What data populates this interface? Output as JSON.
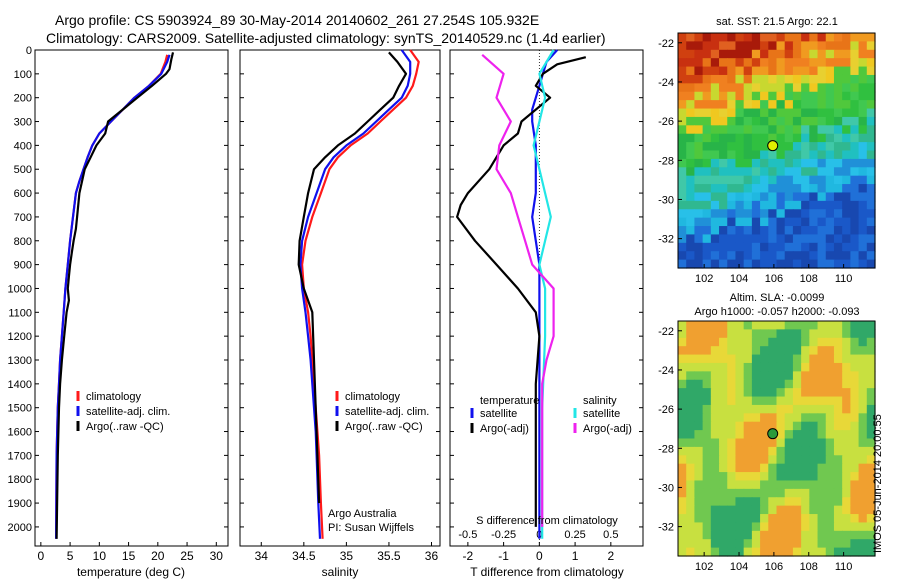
{
  "header": {
    "line1": "Argo profile: CS 5903924_89 30-May-2014 20140602_261 27.254S 105.932E",
    "line2": "Climatology: CARS2009. Satellite-adjusted climatology: synTS_20140529.nc (1.4d earlier)"
  },
  "side_stamp": "IMOS 05-Jun-2014 20:00:55",
  "colors": {
    "black": "#000000",
    "red": "#ff1a1a",
    "blue": "#1010ee",
    "cyan": "#22e6e6",
    "magenta": "#ee22ee"
  },
  "chart_data": [
    {
      "id": "temperature",
      "type": "line",
      "xlabel": "temperature (deg C)",
      "ylabel": "",
      "xlim": [
        -1,
        32
      ],
      "ylim": [
        2080,
        0
      ],
      "xticks": [
        0,
        5,
        10,
        15,
        20,
        25,
        30
      ],
      "yticks": [
        0,
        100,
        200,
        300,
        400,
        500,
        600,
        700,
        800,
        900,
        1000,
        1100,
        1200,
        1300,
        1400,
        1500,
        1600,
        1700,
        1800,
        1900,
        2000
      ],
      "legend": {
        "position": "lower-center",
        "entries": [
          "climatology",
          "satellite-adj. clim.",
          "Argo(..raw -QC)"
        ]
      },
      "series": [
        {
          "name": "climatology",
          "color": "red",
          "x": [
            21.6,
            21.3,
            20.5,
            18.5,
            16,
            14,
            12,
            10,
            8.8,
            8,
            7.3,
            6.6,
            6,
            5.5,
            5,
            4.6,
            4.2,
            3.9,
            3.6,
            3.3,
            3.1,
            2.9,
            2.7,
            2.6
          ],
          "y": [
            20,
            50,
            100,
            150,
            200,
            250,
            300,
            350,
            400,
            450,
            500,
            550,
            600,
            700,
            800,
            900,
            1000,
            1100,
            1200,
            1300,
            1400,
            1500,
            1700,
            2050
          ]
        },
        {
          "name": "satellite-adj. clim.",
          "color": "blue",
          "x": [
            22,
            21.6,
            20.6,
            18.5,
            16,
            14,
            12,
            10,
            8.8,
            8,
            7.3,
            6.6,
            6,
            5.5,
            5,
            4.6,
            4.2,
            3.9,
            3.6,
            3.3,
            3.1,
            2.9,
            2.7,
            2.6
          ],
          "y": [
            20,
            50,
            100,
            150,
            200,
            250,
            300,
            350,
            400,
            450,
            500,
            550,
            600,
            700,
            800,
            900,
            1000,
            1100,
            1200,
            1300,
            1400,
            1500,
            1700,
            2050
          ]
        },
        {
          "name": "Argo(..raw -QC)",
          "color": "black",
          "x": [
            22.6,
            22.3,
            22,
            21.4,
            19,
            16.5,
            14,
            11.5,
            11,
            9.5,
            8.5,
            7.5,
            6.6,
            6.2,
            6,
            5.6,
            5.3,
            5,
            4.8,
            4.6,
            4.8,
            4.4,
            4,
            3.6,
            3.3,
            3.1,
            2.9,
            2.7
          ],
          "y": [
            10,
            40,
            80,
            100,
            150,
            200,
            250,
            300,
            350,
            400,
            450,
            500,
            600,
            700,
            750,
            800,
            850,
            900,
            950,
            1000,
            1050,
            1100,
            1200,
            1300,
            1400,
            1500,
            1700,
            2050
          ]
        }
      ]
    },
    {
      "id": "salinity",
      "type": "line",
      "xlabel": "salinity",
      "ylabel": "",
      "xlim": [
        33.75,
        36.1
      ],
      "ylim": [
        2080,
        0
      ],
      "xticks": [
        34,
        34.5,
        35,
        35.5,
        36
      ],
      "legend": {
        "position": "lower-center",
        "entries": [
          "climatology",
          "satellite-adj. clim.",
          "Argo(..raw -QC)"
        ]
      },
      "annotation": [
        "Argo Australia",
        "PI: Susan Wijffels"
      ],
      "series": [
        {
          "name": "climatology",
          "color": "red",
          "x": [
            35.75,
            35.85,
            35.82,
            35.78,
            35.7,
            35.55,
            35.4,
            35.25,
            35.05,
            34.9,
            34.8,
            34.7,
            34.6,
            34.52,
            34.48,
            34.5,
            34.55,
            34.58,
            34.6,
            34.62,
            34.64,
            34.66,
            34.68,
            34.7,
            34.72
          ],
          "y": [
            0,
            50,
            100,
            150,
            200,
            250,
            300,
            350,
            400,
            450,
            500,
            600,
            700,
            800,
            900,
            1000,
            1100,
            1200,
            1300,
            1400,
            1500,
            1600,
            1700,
            1900,
            2050
          ]
        },
        {
          "name": "satellite-adj. clim.",
          "color": "blue",
          "x": [
            35.65,
            35.75,
            35.75,
            35.72,
            35.65,
            35.5,
            35.35,
            35.2,
            35.0,
            34.85,
            34.75,
            34.65,
            34.55,
            34.48,
            34.46,
            34.48,
            34.52,
            34.55,
            34.58,
            34.6,
            34.62,
            34.64,
            34.65,
            34.67,
            34.69
          ],
          "y": [
            0,
            50,
            100,
            150,
            200,
            250,
            300,
            350,
            400,
            450,
            500,
            600,
            700,
            800,
            900,
            1000,
            1100,
            1200,
            1300,
            1400,
            1500,
            1600,
            1700,
            1900,
            2050
          ]
        },
        {
          "name": "Argo(..raw -QC)",
          "color": "black",
          "x": [
            35.5,
            35.6,
            35.7,
            35.62,
            35.55,
            35.4,
            35.25,
            35.1,
            34.9,
            34.75,
            34.62,
            34.55,
            34.5,
            34.45,
            34.44,
            34.5,
            34.6,
            34.62,
            34.64,
            34.66,
            34.68
          ],
          "y": [
            10,
            50,
            100,
            150,
            200,
            250,
            300,
            350,
            400,
            450,
            500,
            600,
            700,
            800,
            900,
            1000,
            1100,
            1300,
            1500,
            1700,
            1900
          ]
        }
      ]
    },
    {
      "id": "difference",
      "type": "line",
      "xlabel": "T difference from climatology",
      "top_xlabel": "S difference from climatology",
      "xlim": [
        -2.5,
        2.9
      ],
      "ylim": [
        2080,
        0
      ],
      "xticks": [
        -2,
        -1,
        0,
        1,
        2
      ],
      "xtick_labels": [
        "-2",
        "-1",
        "0",
        "1",
        "2"
      ],
      "s_ticks": [
        -0.5,
        -0.25,
        0,
        0.25,
        0.5
      ],
      "s_tick_labels": [
        "-0.5",
        "-0.25",
        "0",
        "0.25",
        "0.5"
      ],
      "legend": {
        "temperature_title": "temperature",
        "salinity_title": "salinity",
        "entries": [
          "satellite",
          "Argo(-adj)",
          "satellite",
          "Argo(-adj)"
        ]
      },
      "series": [
        {
          "name": "satellite",
          "group": "temperature",
          "color": "blue",
          "x": [
            0.5,
            0.2,
            0.1,
            0,
            -0.1,
            -0.2,
            -0.2,
            -0.1,
            -0.1,
            -0.1,
            -0.2,
            -0.1,
            0,
            0,
            0,
            0,
            0,
            0,
            0,
            0,
            0,
            0
          ],
          "y": [
            0,
            50,
            100,
            150,
            200,
            250,
            300,
            400,
            500,
            600,
            700,
            800,
            900,
            1000,
            1100,
            1200,
            1300,
            1400,
            1500,
            1700,
            1900,
            2050
          ]
        },
        {
          "name": "Argo(-adj)",
          "group": "temperature",
          "color": "black",
          "x": [
            1.3,
            0.5,
            0.1,
            -0.1,
            0.3,
            -0.5,
            -0.6,
            -1.0,
            -1.4,
            -2.0,
            -2.2,
            -2.3,
            -1.8,
            -1.2,
            -0.6,
            -0.1,
            0,
            -0.1,
            -0.1,
            -0.1,
            -0.1
          ],
          "y": [
            30,
            60,
            100,
            150,
            200,
            300,
            350,
            400,
            500,
            600,
            650,
            700,
            800,
            900,
            1000,
            1100,
            1200,
            1400,
            1600,
            1800,
            2000
          ]
        },
        {
          "name": "satellite",
          "group": "salinity",
          "color": "cyan",
          "x": [
            0.1,
            0,
            0.04,
            0,
            -0.04,
            0,
            0.04,
            0.08,
            0.04,
            0,
            0.04,
            0.04,
            0.02,
            0.02,
            0.02
          ],
          "y": [
            0,
            100,
            200,
            300,
            400,
            500,
            600,
            700,
            800,
            900,
            1000,
            1200,
            1500,
            1800,
            2050
          ]
        },
        {
          "name": "Argo(-adj)",
          "group": "salinity",
          "color": "magenta",
          "x": [
            -0.4,
            -0.25,
            -0.3,
            -0.2,
            -0.28,
            -0.3,
            -0.2,
            -0.15,
            -0.1,
            -0.05,
            0.1,
            0.1,
            0.1,
            0.05,
            0.02,
            0.02,
            0.02,
            0.02,
            0.02
          ],
          "y": [
            20,
            100,
            200,
            300,
            400,
            500,
            600,
            700,
            800,
            900,
            1000,
            1100,
            1200,
            1300,
            1400,
            1600,
            1800,
            1900,
            2000
          ]
        }
      ]
    },
    {
      "id": "sst-map",
      "type": "heatmap",
      "title": "sat. SST: 21.5 Argo: 22.1",
      "xlim": [
        100.5,
        111.8
      ],
      "ylim": [
        -33.5,
        -21.5
      ],
      "xticks": [
        102,
        104,
        106,
        108,
        110
      ],
      "yticks": [
        -22,
        -24,
        -26,
        -28,
        -30,
        -32
      ],
      "marker": {
        "lon": 105.932,
        "lat": -27.254,
        "color": "#e0f000"
      }
    },
    {
      "id": "sla-map",
      "type": "heatmap",
      "title_lines": [
        "Altim. SLA: -0.0099",
        "Argo h1000: -0.057 h2000: -0.093"
      ],
      "xlim": [
        100.5,
        111.8
      ],
      "ylim": [
        -33.5,
        -21.5
      ],
      "xticks": [
        102,
        104,
        106,
        108,
        110
      ],
      "yticks": [
        -22,
        -24,
        -26,
        -28,
        -30,
        -32
      ],
      "marker": {
        "lon": 105.932,
        "lat": -27.254,
        "color": "#2a9a3a"
      }
    }
  ]
}
